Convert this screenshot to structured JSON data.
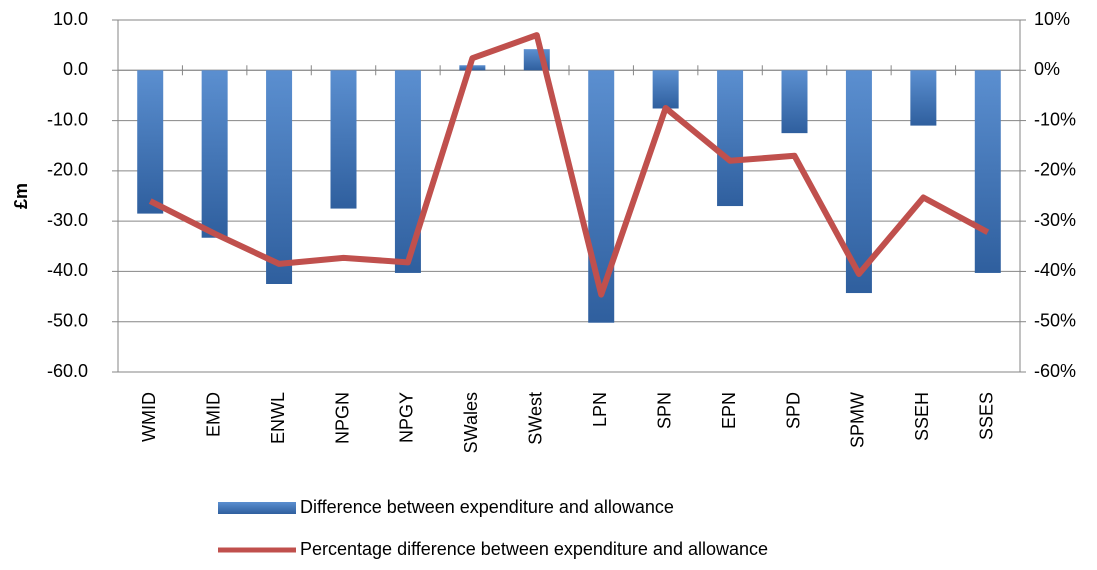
{
  "chart_data": {
    "type": "bar_line",
    "ylabel": "£m",
    "categories": [
      "WMID",
      "EMID",
      "ENWL",
      "NPGN",
      "NPGY",
      "SWales",
      "SWest",
      "LPN",
      "SPN",
      "EPN",
      "SPD",
      "SPMW",
      "SSEH",
      "SSES"
    ],
    "series": [
      {
        "name": "Difference between expenditure and allowance",
        "type": "bar",
        "color": "#4f81bd",
        "values": [
          -28.5,
          -33.3,
          -42.5,
          -27.5,
          -40.3,
          1.0,
          4.2,
          -50.2,
          -7.6,
          -27.0,
          -12.5,
          -44.3,
          -11.0,
          -40.3
        ]
      },
      {
        "name": "Percentage difference between expenditure and allowance",
        "type": "line",
        "axis": "y2",
        "color": "#c0504d",
        "values": [
          -26,
          -32.5,
          -38.5,
          -37.3,
          -38.2,
          2.4,
          7.0,
          -44.6,
          -7.5,
          -18,
          -17,
          -40.5,
          -25.3,
          -32.2
        ]
      }
    ],
    "ylim": [
      -60,
      10
    ],
    "yticks": [
      {
        "value": 10,
        "label": "10.0"
      },
      {
        "value": 0,
        "label": "0.0"
      },
      {
        "value": -10,
        "label": "-10.0"
      },
      {
        "value": -20,
        "label": "-20.0"
      },
      {
        "value": -30,
        "label": "-30.0"
      },
      {
        "value": -40,
        "label": "-40.0"
      },
      {
        "value": -50,
        "label": "-50.0"
      },
      {
        "value": -60,
        "label": "-60.0"
      }
    ],
    "y2lim": [
      -60,
      10
    ],
    "y2ticks": [
      {
        "value": 10,
        "label": "10%"
      },
      {
        "value": 0,
        "label": "0%"
      },
      {
        "value": -10,
        "label": "-10%"
      },
      {
        "value": -20,
        "label": "-20%"
      },
      {
        "value": -30,
        "label": "-30%"
      },
      {
        "value": -40,
        "label": "-40%"
      },
      {
        "value": -50,
        "label": "-50%"
      },
      {
        "value": -60,
        "label": "-60%"
      }
    ],
    "grid": true,
    "legend": "bottom"
  }
}
